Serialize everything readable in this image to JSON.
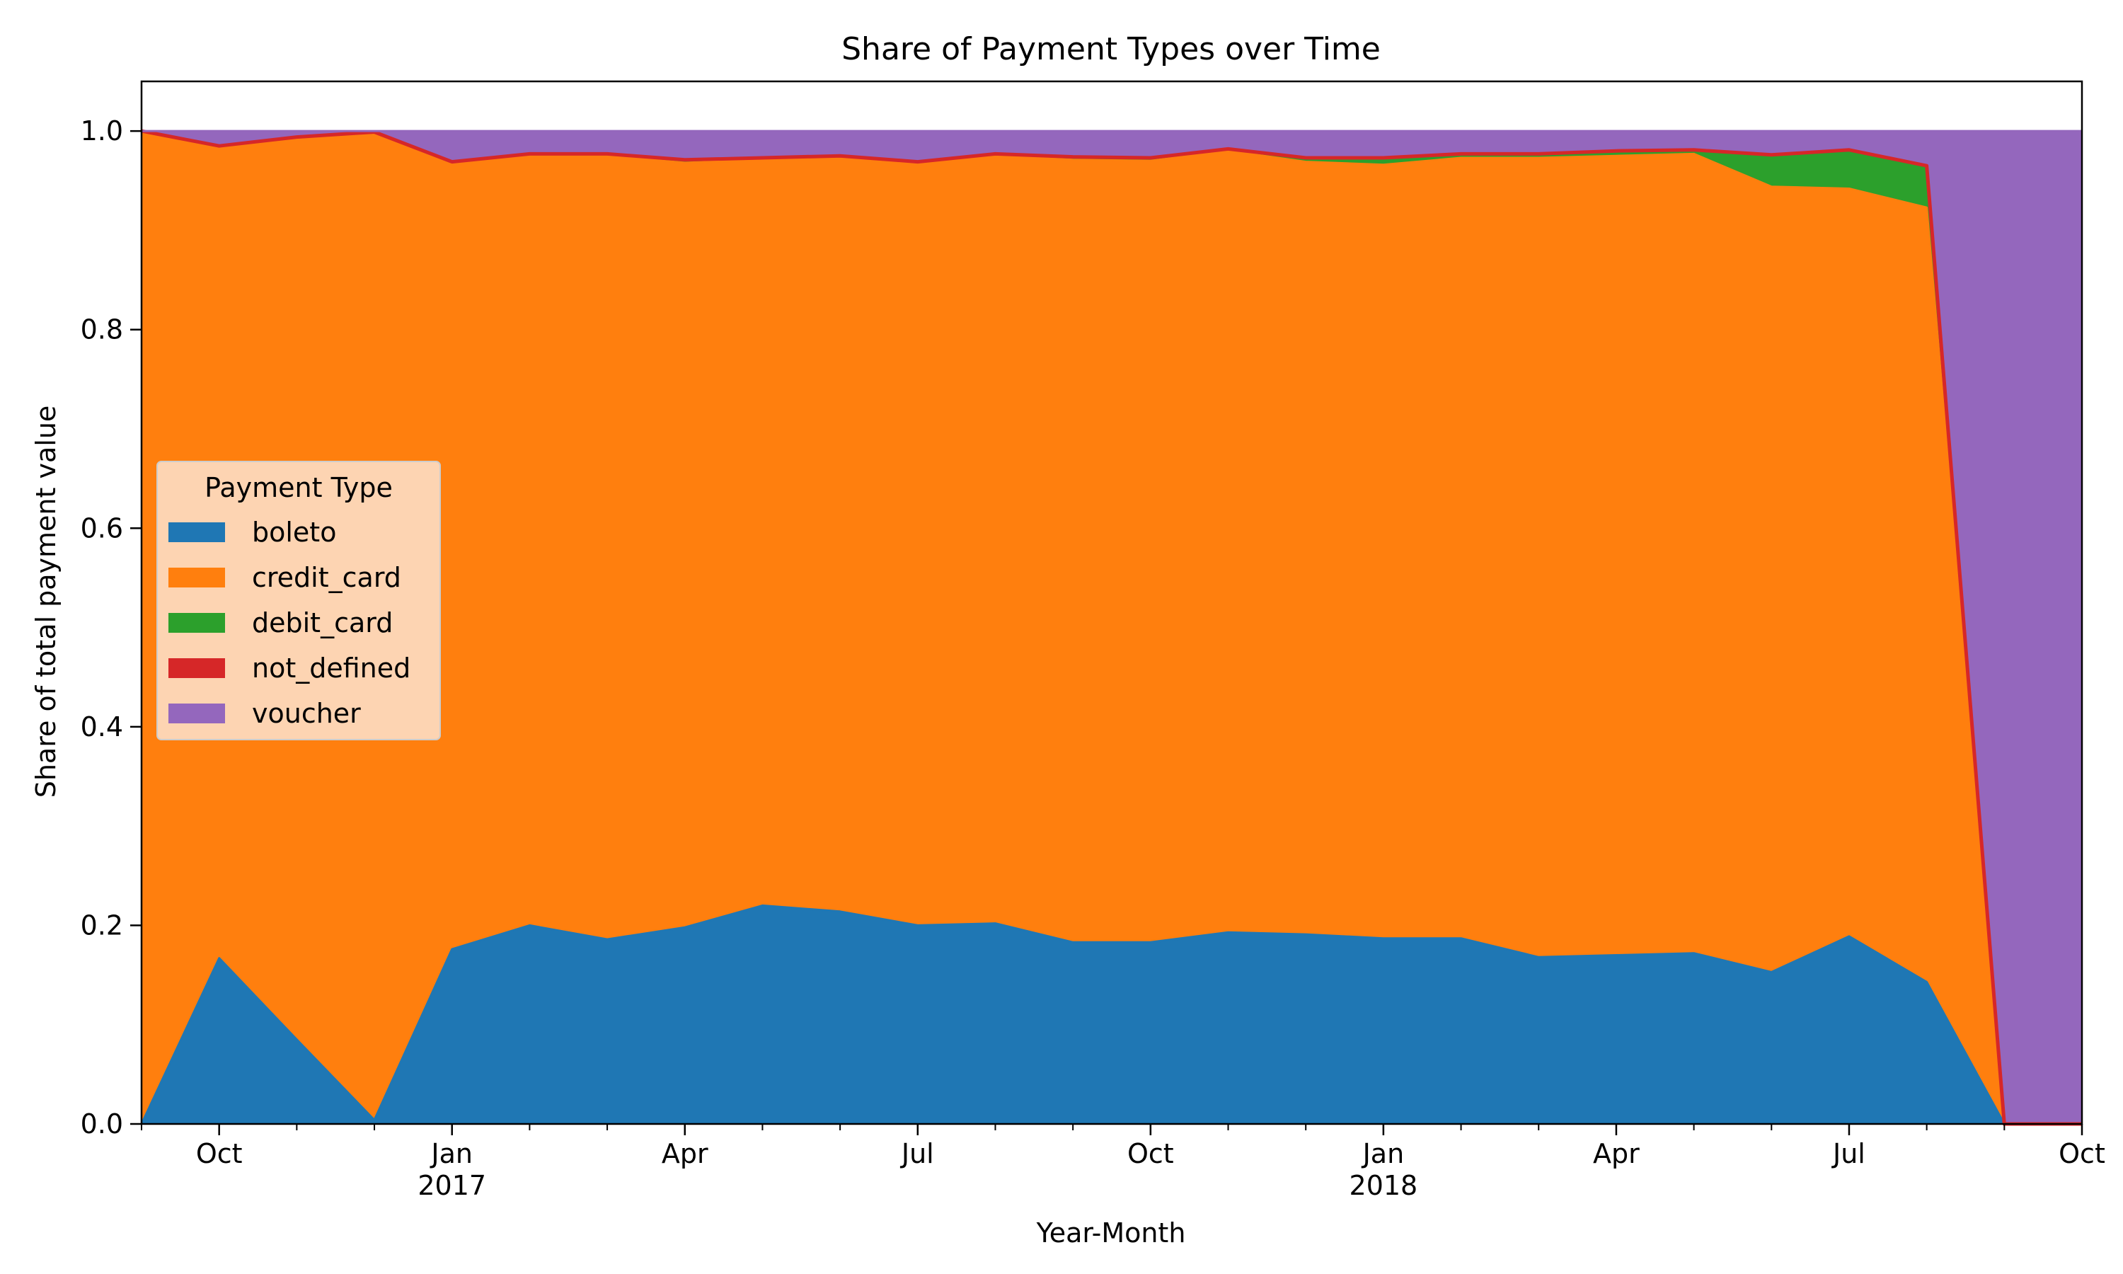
{
  "chart_data": {
    "type": "area",
    "stacked": true,
    "title": "Share of Payment Types over Time",
    "xlabel": "Year-Month",
    "ylabel": "Share of total payment value",
    "ylim": [
      0,
      1.05
    ],
    "yticks": [
      0.0,
      0.2,
      0.4,
      0.6,
      0.8,
      1.0
    ],
    "ytick_labels": [
      "0.0",
      "0.2",
      "0.4",
      "0.6",
      "0.8",
      "1.0"
    ],
    "x": [
      "2016-09",
      "2016-10",
      "2016-11",
      "2016-12",
      "2017-01",
      "2017-02",
      "2017-03",
      "2017-04",
      "2017-05",
      "2017-06",
      "2017-07",
      "2017-08",
      "2017-09",
      "2017-10",
      "2017-11",
      "2017-12",
      "2018-01",
      "2018-02",
      "2018-03",
      "2018-04",
      "2018-05",
      "2018-06",
      "2018-07",
      "2018-08",
      "2018-09",
      "2018-10"
    ],
    "xticks": [
      {
        "month": "2016-10",
        "label": "Oct",
        "year": ""
      },
      {
        "month": "2017-01",
        "label": "Jan",
        "year": "2017"
      },
      {
        "month": "2017-04",
        "label": "Apr",
        "year": ""
      },
      {
        "month": "2017-07",
        "label": "Jul",
        "year": ""
      },
      {
        "month": "2017-10",
        "label": "Oct",
        "year": ""
      },
      {
        "month": "2018-01",
        "label": "Jan",
        "year": "2018"
      },
      {
        "month": "2018-04",
        "label": "Apr",
        "year": ""
      },
      {
        "month": "2018-07",
        "label": "Jul",
        "year": ""
      },
      {
        "month": "2018-10",
        "label": "Oct",
        "year": ""
      }
    ],
    "legend": {
      "title": "Payment Type",
      "placement": "center-left"
    },
    "series": [
      {
        "name": "boleto",
        "color": "#1f77b4",
        "values": [
          0.0,
          0.167,
          0.085,
          0.004,
          0.176,
          0.2,
          0.186,
          0.198,
          0.22,
          0.214,
          0.2,
          0.202,
          0.183,
          0.183,
          0.193,
          0.191,
          0.187,
          0.187,
          0.168,
          0.17,
          0.172,
          0.153,
          0.189,
          0.143,
          0.0,
          0.0
        ]
      },
      {
        "name": "credit_card",
        "color": "#ff7f0e",
        "values": [
          1.0,
          0.818,
          0.909,
          0.995,
          0.793,
          0.777,
          0.789,
          0.77,
          0.751,
          0.759,
          0.769,
          0.773,
          0.788,
          0.787,
          0.787,
          0.778,
          0.779,
          0.786,
          0.805,
          0.805,
          0.805,
          0.791,
          0.753,
          0.78,
          0.0,
          0.0
        ]
      },
      {
        "name": "debit_card",
        "color": "#2ca02c",
        "values": [
          0.0,
          0.0,
          0.0,
          0.0,
          0.0,
          0.0,
          0.002,
          0.003,
          0.002,
          0.002,
          0.0,
          0.002,
          0.003,
          0.003,
          0.002,
          0.004,
          0.007,
          0.004,
          0.004,
          0.005,
          0.004,
          0.032,
          0.039,
          0.042,
          0.0,
          0.0
        ]
      },
      {
        "name": "not_defined",
        "color": "#d62728",
        "values": [
          0.0,
          0.0,
          0.0,
          0.0,
          0.0,
          0.0,
          0.0,
          0.0,
          0.0,
          0.0,
          0.0,
          0.0,
          0.0,
          0.0,
          0.0,
          0.0,
          0.0,
          0.0,
          0.0,
          0.0,
          0.0,
          0.0,
          0.0,
          0.0,
          0.0,
          0.0
        ]
      },
      {
        "name": "voucher",
        "color": "#9467bd",
        "values": [
          0.0,
          0.015,
          0.006,
          0.001,
          0.031,
          0.023,
          0.023,
          0.029,
          0.027,
          0.025,
          0.031,
          0.023,
          0.026,
          0.027,
          0.018,
          0.027,
          0.027,
          0.023,
          0.023,
          0.02,
          0.019,
          0.024,
          0.019,
          0.035,
          1.0,
          1.0
        ]
      }
    ]
  }
}
